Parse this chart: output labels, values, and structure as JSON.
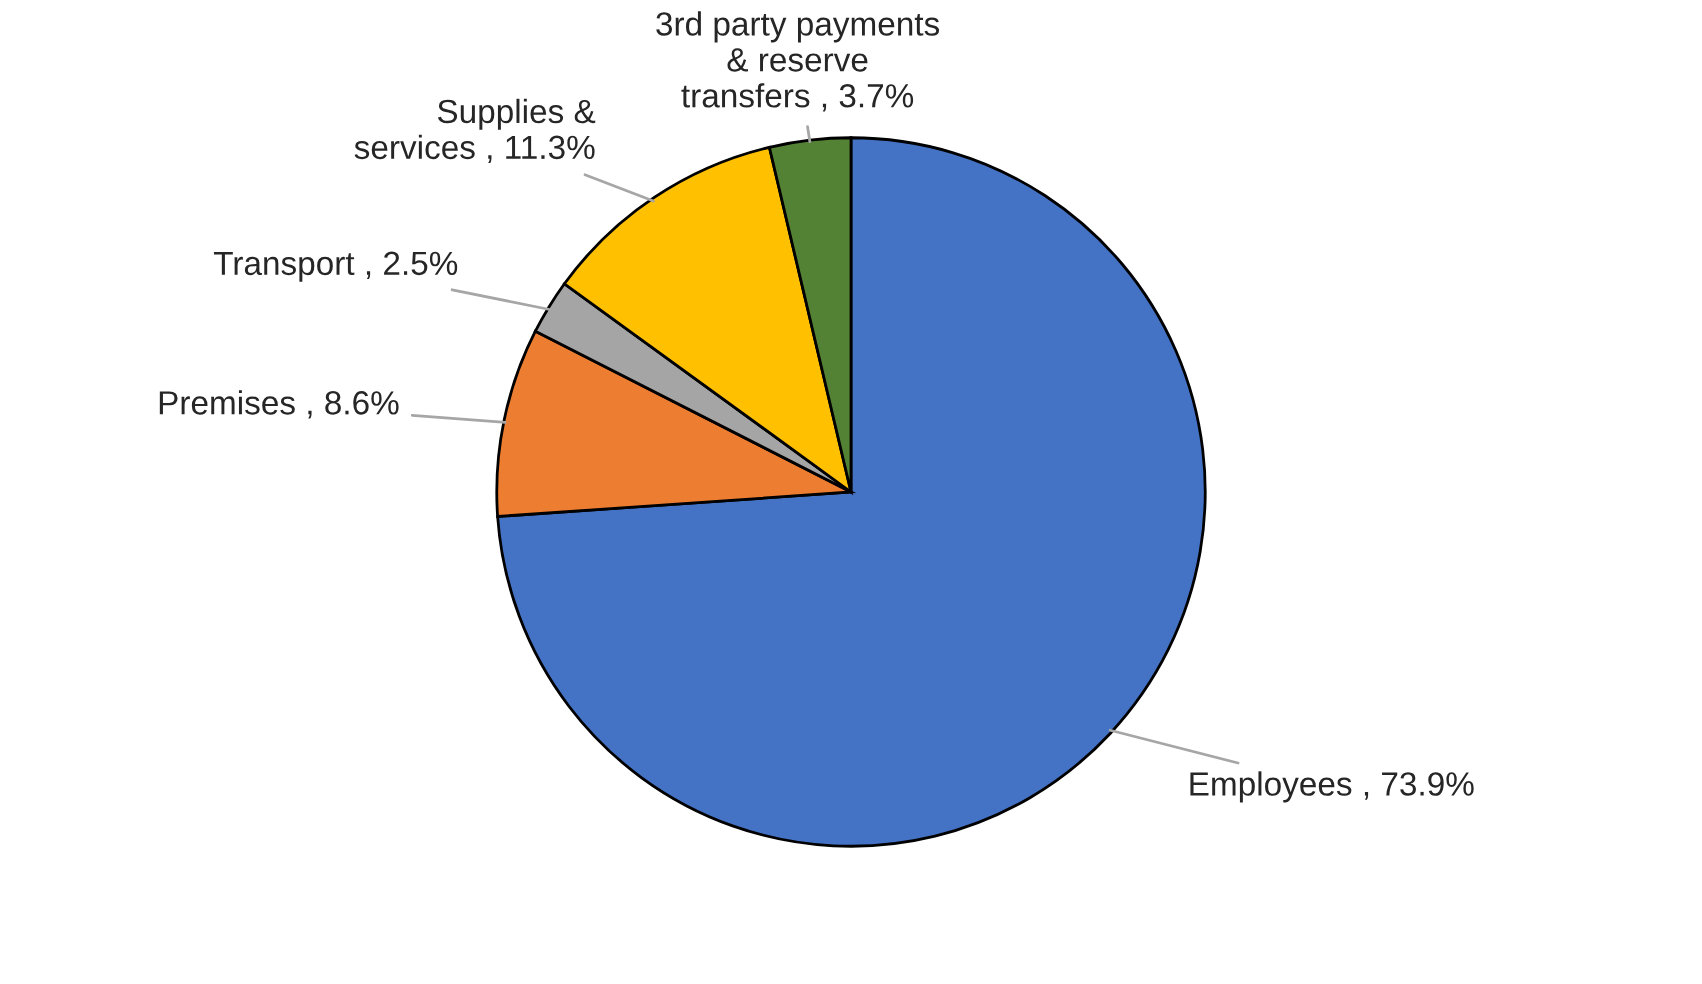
{
  "chart_data": {
    "type": "pie",
    "categories": [
      "Employees",
      "Premises",
      "Transport",
      "Supplies & services",
      "3rd party payments & reserve transfers"
    ],
    "values": [
      73.9,
      8.6,
      2.5,
      11.3,
      3.7
    ],
    "value_labels": [
      "73.9%",
      "8.6%",
      "2.5%",
      "11.3%",
      "3.7%"
    ],
    "colors": [
      "#4472c4",
      "#ed7d31",
      "#a5a5a5",
      "#ffc000",
      "#548235"
    ],
    "legend": false
  }
}
